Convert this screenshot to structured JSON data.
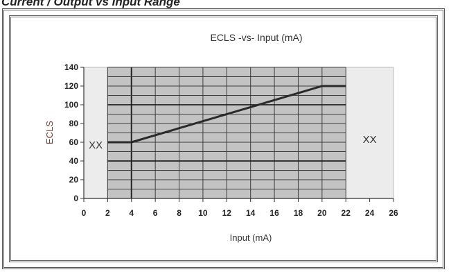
{
  "caption": "Current / Output vs Input Range",
  "chart_data": {
    "type": "line",
    "title": "ECLS -vs- Input (mA)",
    "xlabel": "Input (mA)",
    "ylabel": "ECLS",
    "xlim": [
      0,
      26
    ],
    "ylim": [
      0,
      140
    ],
    "xticks": [
      "0",
      "2",
      "4",
      "6",
      "8",
      "10",
      "12",
      "14",
      "16",
      "18",
      "20",
      "22",
      "24",
      "26"
    ],
    "yticks": [
      "0",
      "20",
      "40",
      "60",
      "80",
      "100",
      "120",
      "140"
    ],
    "grid": true,
    "shaded_range": [
      2,
      22
    ],
    "out_of_range_label": "XX",
    "out_of_range_regions": [
      {
        "x": [
          0,
          2
        ],
        "label": "XX"
      },
      {
        "x": [
          22,
          26
        ],
        "label": "XX"
      }
    ],
    "series": [
      {
        "x": [
          2,
          4,
          20,
          22
        ],
        "y": [
          60,
          60,
          120,
          120
        ]
      }
    ]
  }
}
